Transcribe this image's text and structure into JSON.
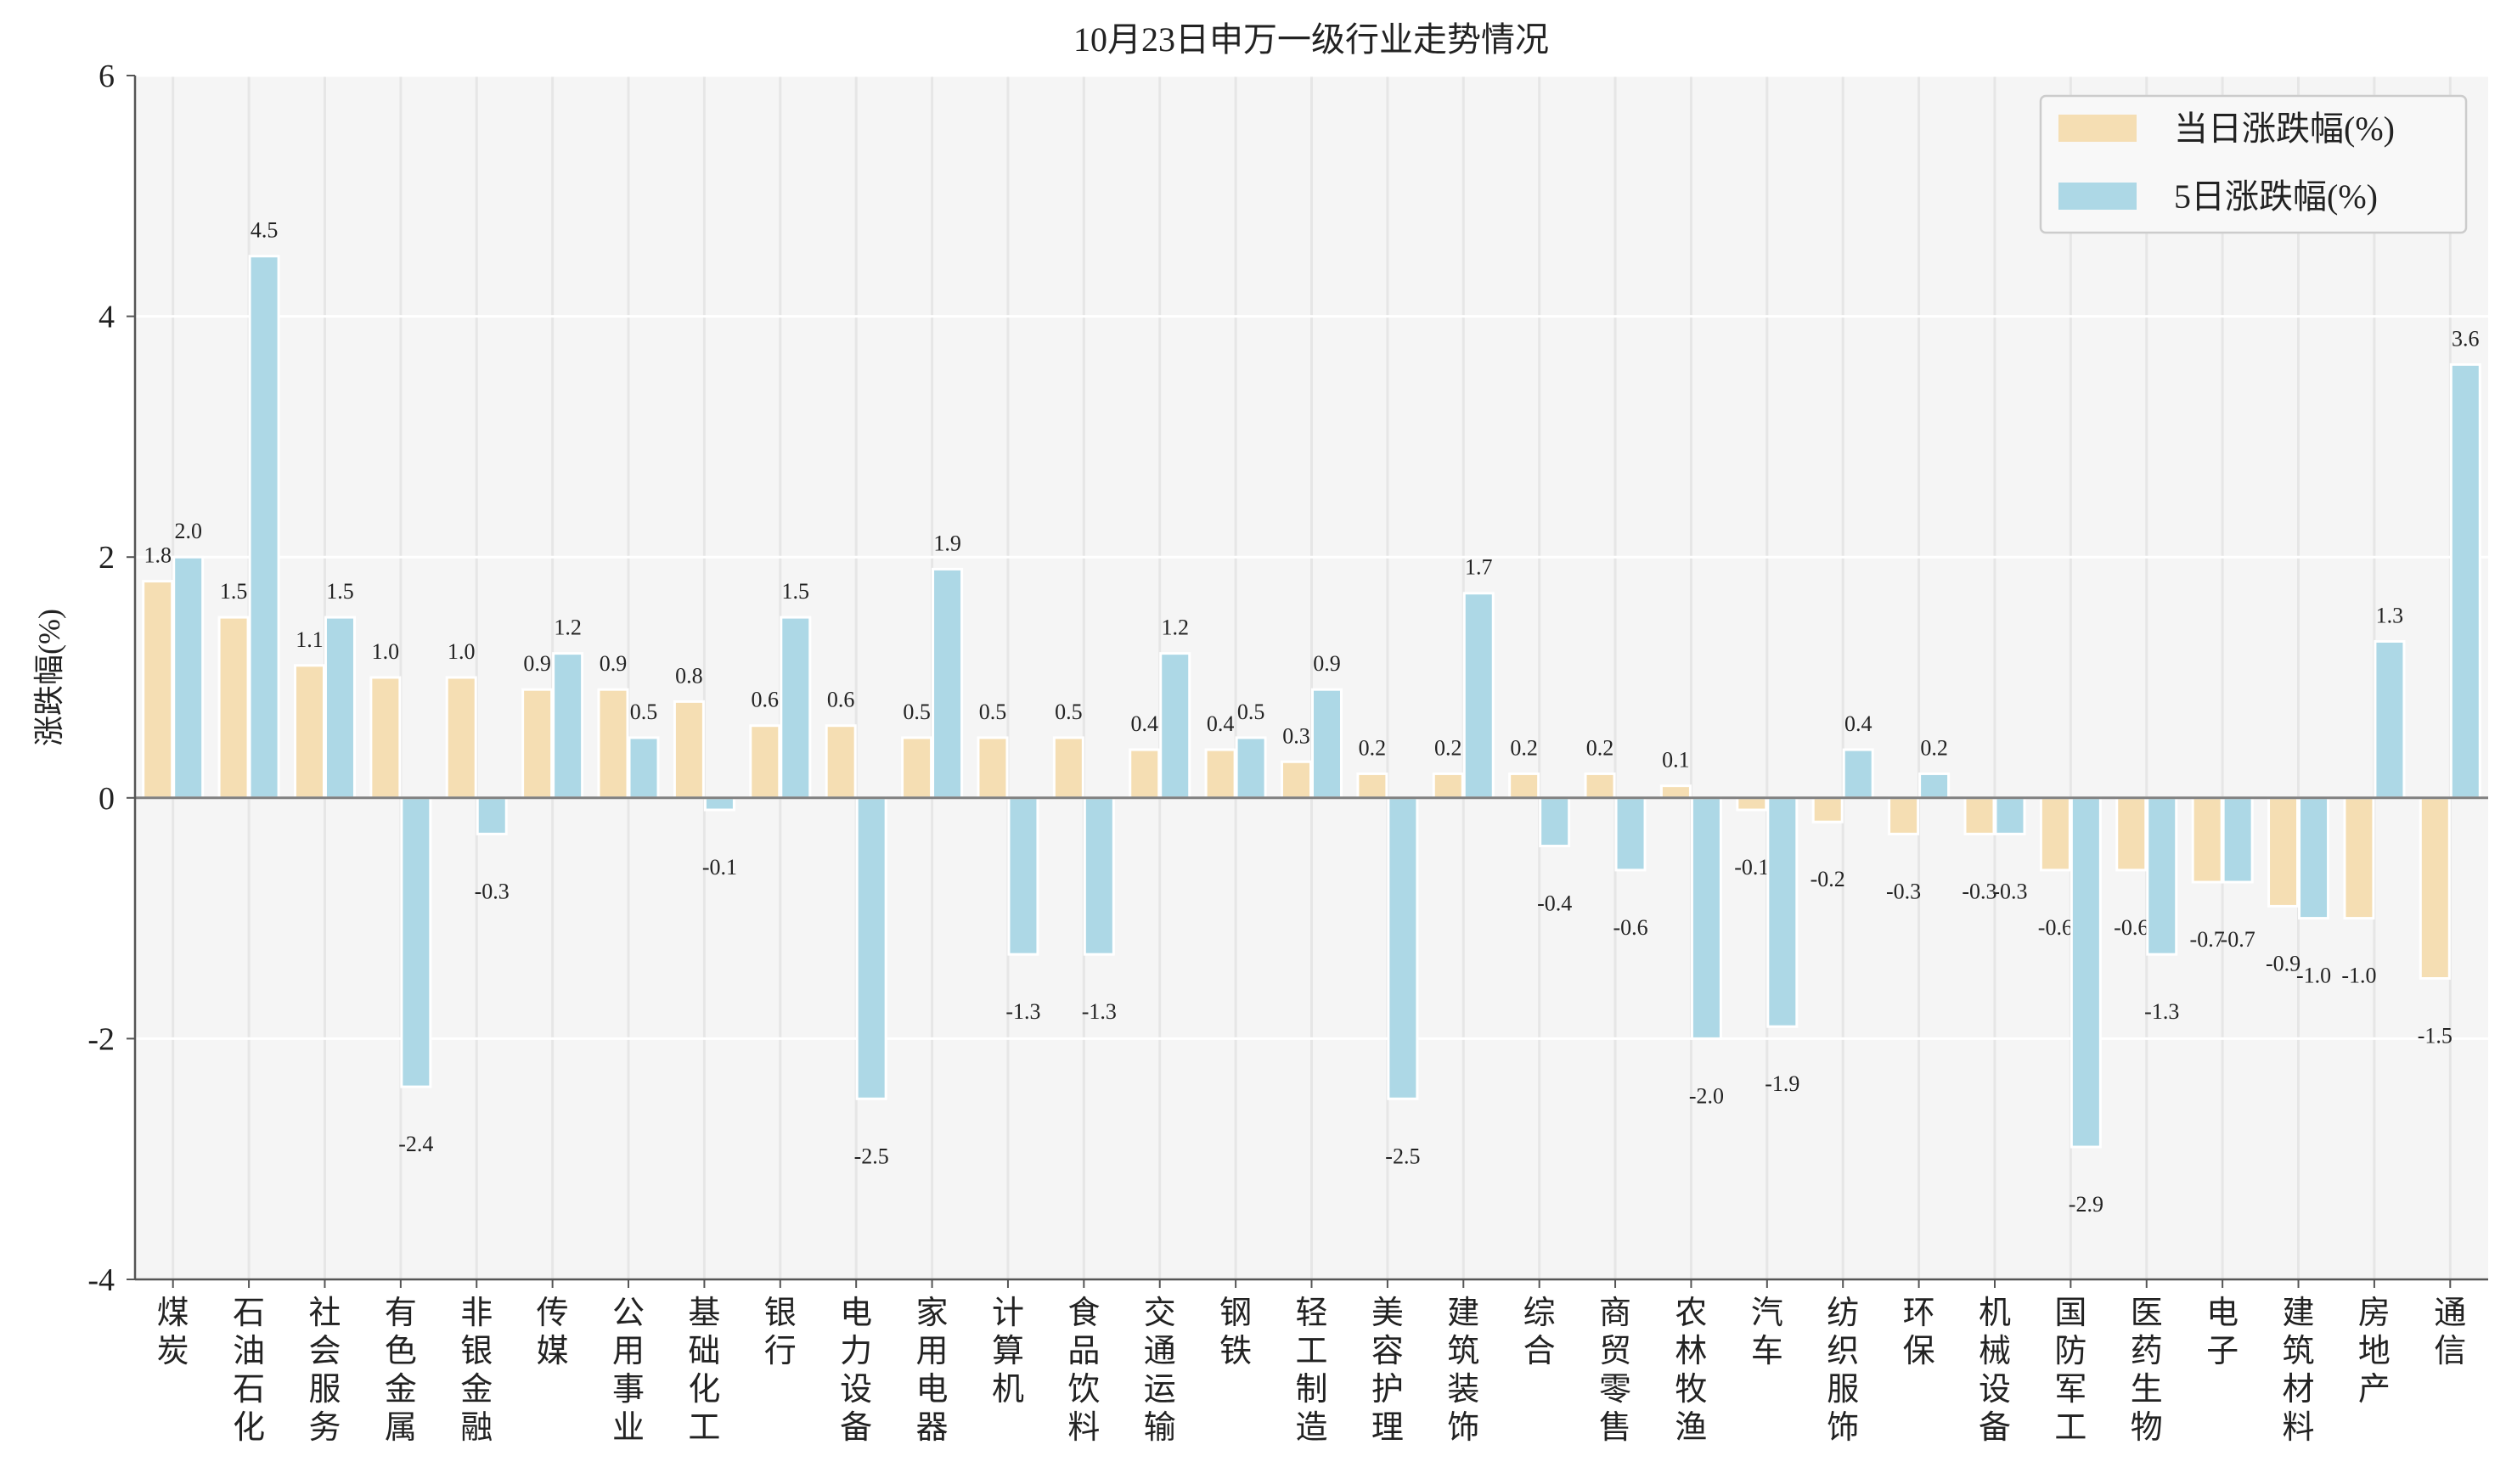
{
  "chart_data": {
    "type": "bar",
    "title": "10月23日申万一级行业走势情况",
    "xlabel": "",
    "ylabel": "涨跌幅(%)",
    "ylim": [
      -4,
      6
    ],
    "yticks": [
      -4,
      -2,
      0,
      2,
      4,
      6
    ],
    "grid": true,
    "legend_position": "top-right",
    "categories": [
      "煤炭",
      "石油石化",
      "社会服务",
      "有色金属",
      "非银金融",
      "传媒",
      "公用事业",
      "基础化工",
      "银行",
      "电力设备",
      "家用电器",
      "计算机",
      "食品饮料",
      "交通运输",
      "钢铁",
      "轻工制造",
      "美容护理",
      "建筑装饰",
      "综合",
      "商贸零售",
      "农林牧渔",
      "汽车",
      "纺织服饰",
      "环保",
      "机械设备",
      "国防军工",
      "医药生物",
      "电子",
      "建筑材料",
      "房地产",
      "通信"
    ],
    "series": [
      {
        "name": "当日涨跌幅(%)",
        "color": "#f5deb3",
        "values": [
          1.8,
          1.5,
          1.1,
          1.0,
          1.0,
          0.9,
          0.9,
          0.8,
          0.6,
          0.6,
          0.5,
          0.5,
          0.5,
          0.4,
          0.4,
          0.3,
          0.2,
          0.2,
          0.2,
          0.2,
          0.1,
          -0.1,
          -0.2,
          -0.3,
          -0.3,
          -0.6,
          -0.6,
          -0.7,
          -0.9,
          -1.0,
          -1.5
        ]
      },
      {
        "name": "5日涨跌幅(%)",
        "color": "#add8e6",
        "values": [
          2.0,
          4.5,
          1.5,
          -2.4,
          -0.3,
          1.2,
          0.5,
          -0.1,
          1.5,
          -2.5,
          1.9,
          -1.3,
          -1.3,
          1.2,
          0.5,
          0.9,
          -2.5,
          1.7,
          -0.4,
          -0.6,
          -2.0,
          -1.9,
          0.4,
          0.2,
          -0.3,
          -2.9,
          -1.3,
          -0.7,
          -1.0,
          1.3,
          3.6
        ]
      }
    ]
  }
}
